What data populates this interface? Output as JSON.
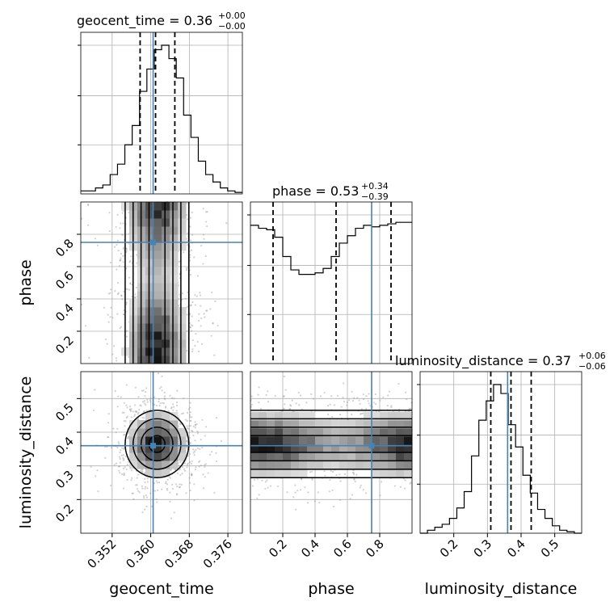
{
  "chart_data": {
    "type": "corner",
    "parameters": [
      "geocent_time",
      "phase",
      "luminosity_distance"
    ],
    "truths": {
      "geocent_time": 0.3605,
      "phase": 0.75,
      "luminosity_distance": 0.36
    },
    "truth_color": "#4682b4",
    "ranges": {
      "geocent_time": [
        0.3455,
        0.379
      ],
      "phase": [
        0.0,
        1.0
      ],
      "luminosity_distance": [
        0.1,
        0.58
      ]
    },
    "ticks": {
      "geocent_time": [
        "0.352",
        "0.360",
        "0.368",
        "0.376"
      ],
      "phase": [
        "0.2",
        "0.4",
        "0.6",
        "0.8"
      ],
      "luminosity_distance": [
        "0.2",
        "0.3",
        "0.4",
        "0.5"
      ]
    },
    "titles": [
      {
        "name": "geocent_time = 0.36",
        "sup": "+0.00",
        "sub": "−0.00"
      },
      {
        "name": "phase = 0.53",
        "sup": "+0.34",
        "sub": "−0.39"
      },
      {
        "name": "luminosity_distance = 0.37",
        "sup": "+0.06",
        "sub": "−0.06"
      }
    ],
    "quantiles": {
      "geocent_time": [
        0.3578,
        0.361,
        0.365
      ],
      "phase": [
        0.14,
        0.53,
        0.87
      ],
      "luminosity_distance": [
        0.31,
        0.37,
        0.43
      ]
    },
    "histograms": {
      "geocent_time": [
        0.02,
        0.02,
        0.04,
        0.06,
        0.13,
        0.2,
        0.33,
        0.46,
        0.69,
        0.84,
        0.97,
        1.0,
        0.91,
        0.78,
        0.53,
        0.38,
        0.22,
        0.13,
        0.08,
        0.04,
        0.02,
        0.01
      ],
      "phase": [
        0.93,
        0.91,
        0.9,
        0.85,
        0.72,
        0.63,
        0.6,
        0.6,
        0.61,
        0.64,
        0.72,
        0.81,
        0.86,
        0.91,
        0.93,
        0.92,
        0.93,
        0.94,
        0.95,
        0.95
      ],
      "luminosity_distance": [
        0.0,
        0.02,
        0.04,
        0.06,
        0.1,
        0.17,
        0.28,
        0.52,
        0.76,
        0.89,
        1.0,
        0.94,
        0.73,
        0.58,
        0.39,
        0.27,
        0.16,
        0.1,
        0.05,
        0.02,
        0.01,
        0.0
      ]
    }
  }
}
